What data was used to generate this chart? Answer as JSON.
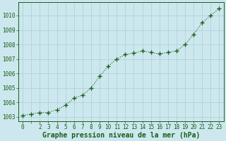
{
  "x": [
    0,
    1,
    2,
    3,
    4,
    5,
    6,
    7,
    8,
    9,
    10,
    11,
    12,
    13,
    14,
    15,
    16,
    17,
    18,
    19,
    20,
    21,
    22,
    23
  ],
  "y": [
    1003.1,
    1003.2,
    1003.3,
    1003.3,
    1003.5,
    1003.8,
    1004.3,
    1004.5,
    1005.0,
    1005.8,
    1006.5,
    1007.0,
    1007.3,
    1007.4,
    1007.55,
    1007.45,
    1007.35,
    1007.45,
    1007.55,
    1008.0,
    1008.7,
    1009.5,
    1010.0,
    1010.5
  ],
  "line_color": "#1a5c1a",
  "marker": "+",
  "marker_size": 4,
  "line_width": 0.8,
  "xlim": [
    -0.5,
    23.5
  ],
  "ylim": [
    1002.7,
    1010.9
  ],
  "yticks": [
    1003,
    1004,
    1005,
    1006,
    1007,
    1008,
    1009,
    1010
  ],
  "xtick_labels": [
    "0",
    "",
    "2",
    "3",
    "4",
    "5",
    "6",
    "7",
    "8",
    "9",
    "10",
    "11",
    "12",
    "13",
    "14",
    "15",
    "16",
    "17",
    "18",
    "19",
    "20",
    "21",
    "22",
    "23"
  ],
  "xlabel": "Graphe pression niveau de la mer (hPa)",
  "background_color": "#cce8ee",
  "grid_color": "#aaccd4",
  "tick_label_color": "#1a5c1a",
  "xlabel_color": "#1a5c1a",
  "xlabel_fontsize": 7.0,
  "tick_fontsize": 5.5
}
